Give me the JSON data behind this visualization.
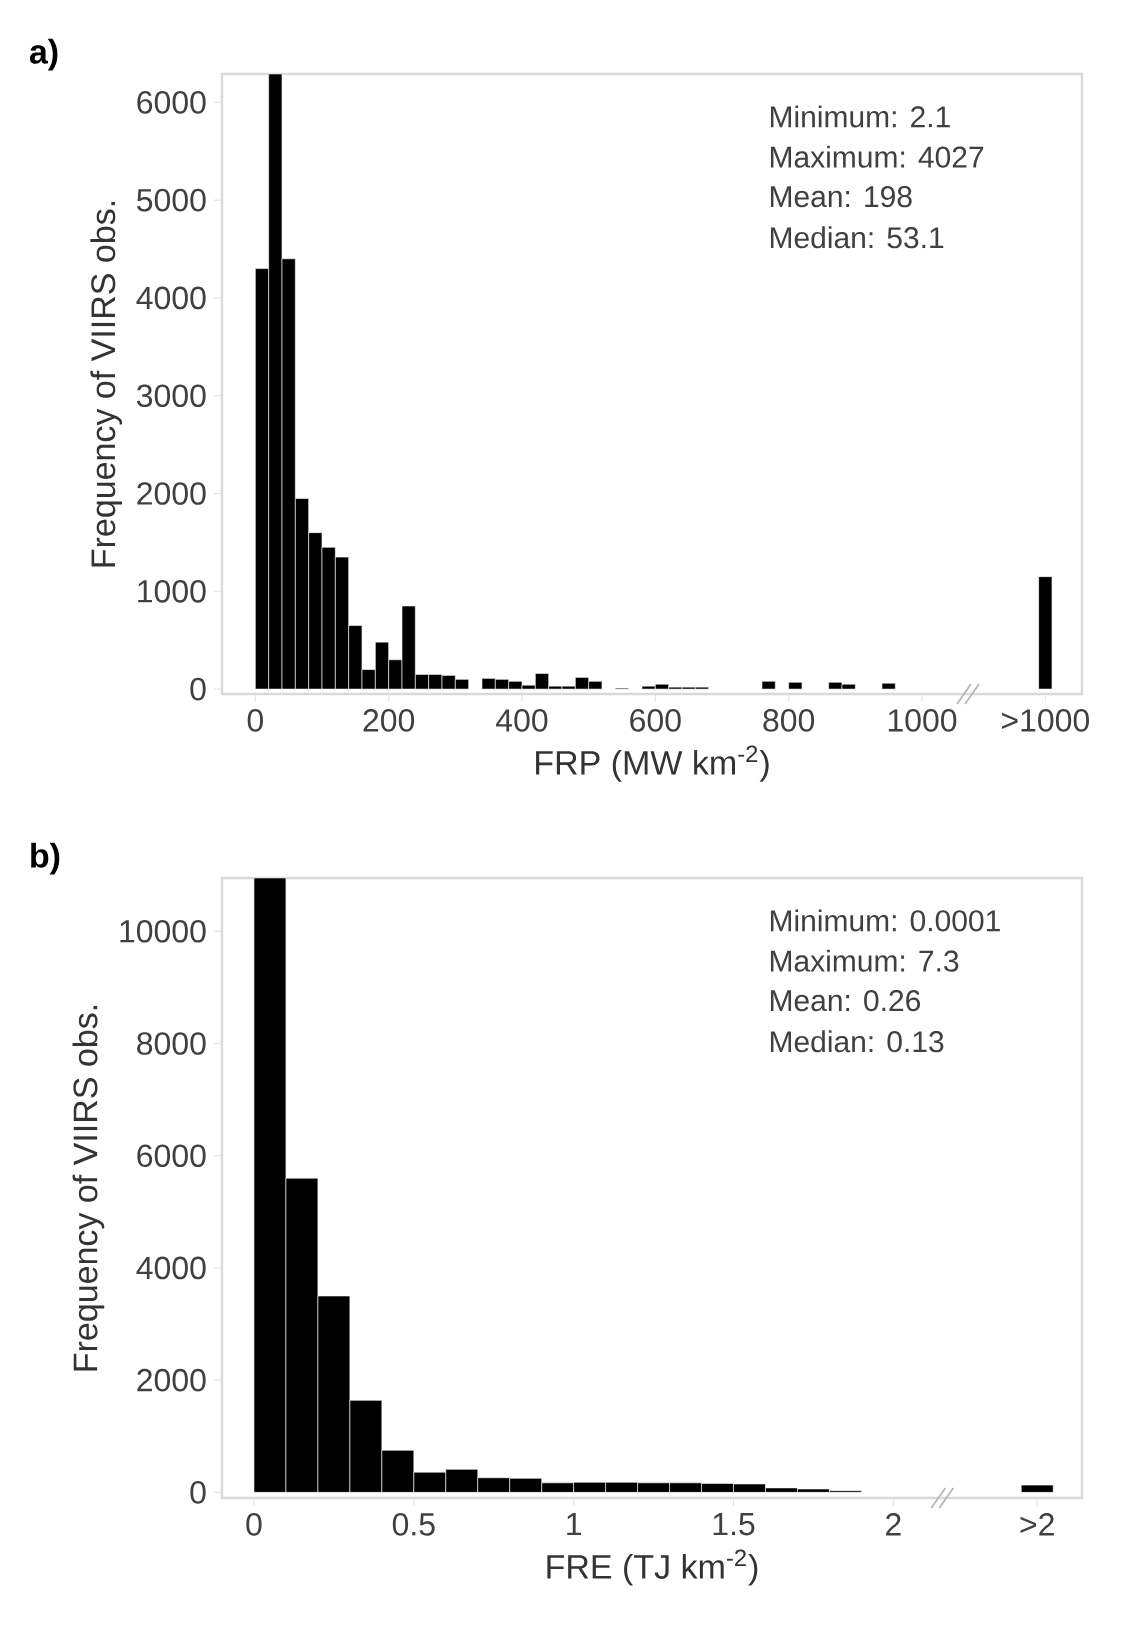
{
  "chart_data": [
    {
      "type": "histogram",
      "title": "a)",
      "xlabel": "FRP (MW km$^{-2}$)",
      "ylabel": "Frequency of VIIRS obs.",
      "color": "#000000",
      "bins": [
        0,
        20,
        40,
        60,
        80,
        100,
        120,
        140,
        160,
        180,
        200,
        220,
        240,
        260,
        280,
        300,
        320,
        340,
        360,
        380,
        400,
        420,
        440,
        460,
        480,
        500,
        520,
        540,
        560,
        580,
        600,
        620,
        640,
        660,
        680,
        760,
        780,
        800,
        820,
        860,
        880,
        900,
        940,
        960,
        1175,
        1195
      ],
      "values": [
        4300,
        6290,
        4400,
        1950,
        1600,
        1450,
        1350,
        650,
        200,
        480,
        300,
        850,
        150,
        150,
        140,
        100,
        0,
        110,
        100,
        80,
        40,
        160,
        30,
        30,
        120,
        80,
        0,
        10,
        0,
        30,
        50,
        20,
        20,
        20,
        0,
        80,
        0,
        70,
        0,
        70,
        50,
        0,
        60,
        null,
        1150
      ],
      "xlim": [
        -50,
        1240
      ],
      "ylim": [
        -50,
        6290
      ],
      "xticks": [
        0,
        200,
        400,
        600,
        800,
        1000,
        {
          "value": 1185,
          "label": ">1000"
        }
      ],
      "yticks": [
        0,
        1000,
        2000,
        3000,
        4000,
        5000,
        6000
      ],
      "annotations": [
        "Minimum: 2.1",
        "Maximum: 4027",
        "Mean: 198",
        "Median: 53.1"
      ]
    },
    {
      "type": "histogram",
      "title": "b)",
      "xlabel": "FRE (TJ km$^{-2}$)",
      "ylabel": "Frequency of VIIRS obs.",
      "color": "#000000",
      "bins": [
        0,
        0.1,
        0.2,
        0.3,
        0.4,
        0.5,
        0.6,
        0.7,
        0.8,
        0.9,
        1.0,
        1.1,
        1.2,
        1.3,
        1.4,
        1.5,
        1.6,
        1.7,
        1.8,
        1.9,
        2.4,
        2.5
      ],
      "values": [
        10950,
        5600,
        3500,
        1640,
        750,
        360,
        410,
        260,
        250,
        170,
        180,
        180,
        170,
        170,
        160,
        150,
        80,
        60,
        30,
        null,
        130
      ],
      "xlim": [
        -0.1,
        2.59
      ],
      "ylim": [
        -100,
        10950
      ],
      "xticks": [
        0,
        0.5,
        1,
        1.5,
        2,
        {
          "value": 2.45,
          "label": ">2"
        }
      ],
      "yticks": [
        0,
        2000,
        4000,
        6000,
        8000,
        10000
      ],
      "annotations": [
        "Minimum: 0.0001",
        "Maximum: 7.3",
        "Mean: 0.26",
        "Median: 0.13"
      ]
    }
  ]
}
